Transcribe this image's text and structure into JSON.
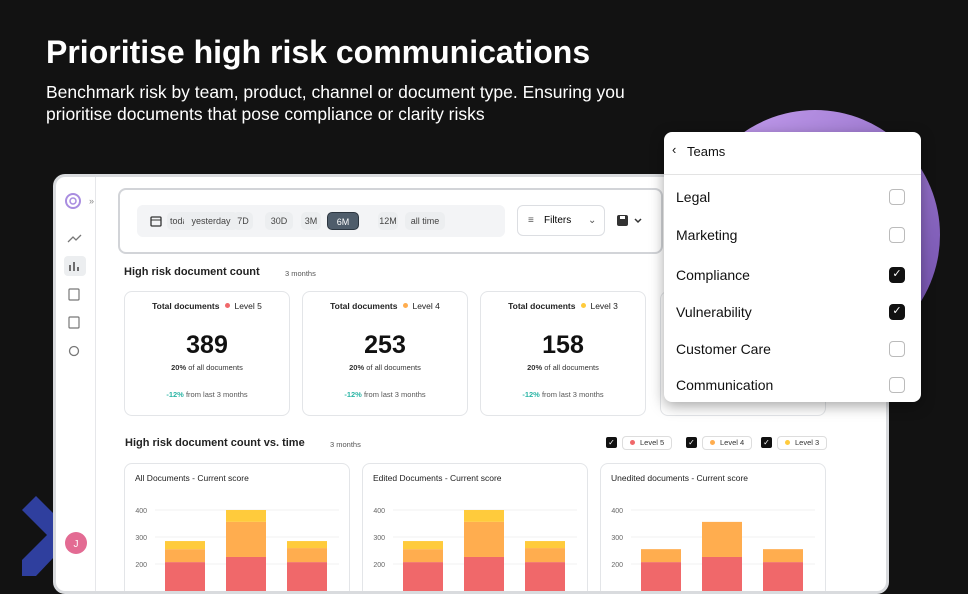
{
  "header": {
    "title": "Prioritise high risk communications",
    "subtitle": "Benchmark risk by team, product, channel or document type. Ensuring you prioritise documents that pose compliance or clarity risks"
  },
  "toolbar": {
    "ranges": [
      "today",
      "yesterday",
      "7D",
      "30D",
      "3M",
      "6M",
      "12M",
      "all time"
    ],
    "active_range": 5,
    "filters": "Filters"
  },
  "summary": {
    "title": "High risk document count",
    "period": "3 months",
    "cards": [
      {
        "label": "Total documents",
        "level": "Level 5",
        "color": "#f0686a",
        "value": "389",
        "share": "20%",
        "share_text": "of all documents",
        "change": "-12%",
        "change_text": "from last 3 months"
      },
      {
        "label": "Total documents",
        "level": "Level 4",
        "color": "#ffad4f",
        "value": "253",
        "share": "20%",
        "share_text": "of all documents",
        "change": "-12%",
        "change_text": "from last 3 months"
      },
      {
        "label": "Total documents",
        "level": "Level 3",
        "color": "#ffcb3c",
        "value": "158",
        "share": "20%",
        "share_text": "of all documents",
        "change": "-12%",
        "change_text": "from last 3 months"
      }
    ]
  },
  "trend": {
    "title": "High risk document count vs. time",
    "period": "3 months",
    "legend": [
      {
        "name": "Level 5",
        "color": "#f0686a",
        "checked": true
      },
      {
        "name": "Level 4",
        "color": "#ffad4f",
        "checked": true
      },
      {
        "name": "Level 3",
        "color": "#ffcb3c",
        "checked": true
      }
    ],
    "charts": [
      {
        "title": "All Documents - Current score",
        "ylim": [
          0,
          400
        ],
        "yticks": [
          400,
          300,
          200
        ],
        "series": [
          {
            "values": [
              207,
              226,
              207
            ]
          },
          {
            "values": [
              48,
              130,
              52
            ]
          },
          {
            "values": [
              30,
              44,
              26
            ]
          }
        ]
      },
      {
        "title": "Edited Documents - Current score",
        "ylim": [
          0,
          400
        ],
        "yticks": [
          400,
          300,
          200
        ],
        "series": [
          {
            "values": [
              207,
              226,
              207
            ]
          },
          {
            "values": [
              48,
              130,
              52
            ]
          },
          {
            "values": [
              30,
              44,
              26
            ]
          }
        ]
      },
      {
        "title": "Unedited documents - Current score",
        "ylim": [
          0,
          400
        ],
        "yticks": [
          400,
          300,
          200
        ],
        "series": [
          {
            "values": [
              207,
              226,
              207
            ]
          },
          {
            "values": [
              48,
              130,
              48
            ]
          },
          {
            "values": [
              0,
              0,
              0
            ]
          }
        ]
      }
    ]
  },
  "dropdown": {
    "title": "Teams",
    "options": [
      {
        "label": "Legal",
        "checked": false
      },
      {
        "label": "Marketing",
        "checked": false
      },
      {
        "label": "Compliance",
        "checked": true
      },
      {
        "label": "Vulnerability",
        "checked": true
      },
      {
        "label": "Customer Care",
        "checked": false
      },
      {
        "label": "Communication",
        "checked": false
      }
    ]
  },
  "avatar": "J"
}
